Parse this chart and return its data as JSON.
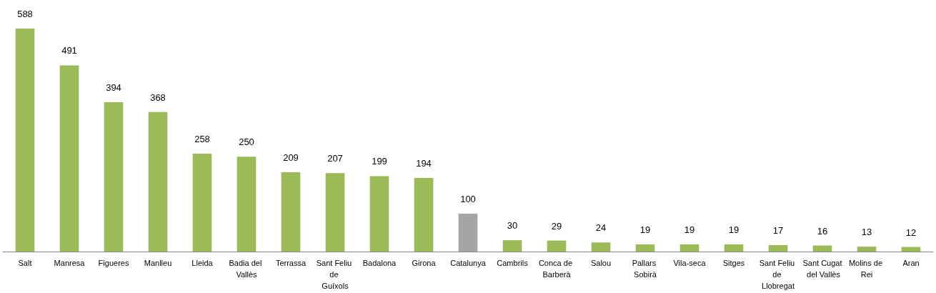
{
  "chart_data": {
    "type": "bar",
    "categories": [
      "Salt",
      "Manresa",
      "Figueres",
      "Manlleu",
      "Lleida",
      "Badia del Vallès",
      "Terrassa",
      "Sant Feliu de Guíxols",
      "Badalona",
      "Girona",
      "Catalunya",
      "Cambrils",
      "Conca de Barberà",
      "Salou",
      "Pallars Sobirà",
      "Vila-seca",
      "Sitges",
      "Sant Feliu de Llobregat",
      "Sant Cugat del Vallès",
      "Molins de Rei",
      "Aran"
    ],
    "values": [
      588,
      491,
      394,
      368,
      258,
      250,
      209,
      207,
      199,
      194,
      100,
      30,
      29,
      24,
      19,
      19,
      19,
      17,
      16,
      13,
      12
    ],
    "colors": [
      "#9bbb59",
      "#9bbb59",
      "#9bbb59",
      "#9bbb59",
      "#9bbb59",
      "#9bbb59",
      "#9bbb59",
      "#9bbb59",
      "#9bbb59",
      "#9bbb59",
      "#a5a5a5",
      "#9bbb59",
      "#9bbb59",
      "#9bbb59",
      "#9bbb59",
      "#9bbb59",
      "#9bbb59",
      "#9bbb59",
      "#9bbb59",
      "#9bbb59",
      "#9bbb59"
    ],
    "data_labels": true
  }
}
